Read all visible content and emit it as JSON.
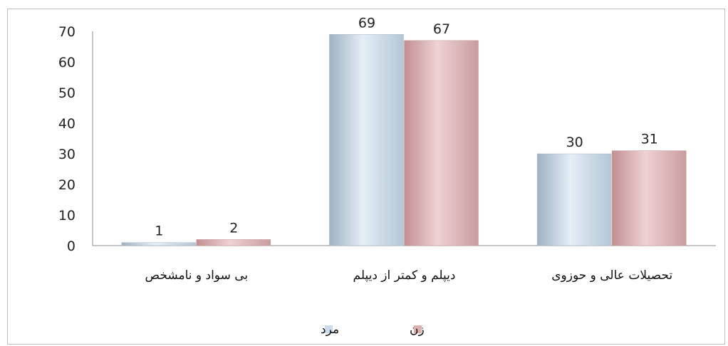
{
  "chart_data": {
    "type": "bar",
    "categories": [
      "بی سواد و نامشخص",
      "دیپلم و کمتر از دیپلم",
      "تحصیلات عالی و حوزوی"
    ],
    "series": [
      {
        "name": "مرد",
        "values": [
          1,
          69,
          30
        ],
        "color": "#c9dceb"
      },
      {
        "name": "زن",
        "values": [
          2,
          67,
          31
        ],
        "color": "#dcb1b2"
      }
    ],
    "y_ticks": [
      "0",
      "10",
      "20",
      "30",
      "40",
      "50",
      "60",
      "70"
    ],
    "ylim": [
      0,
      70
    ],
    "grid": false,
    "legend_position": "bottom"
  }
}
